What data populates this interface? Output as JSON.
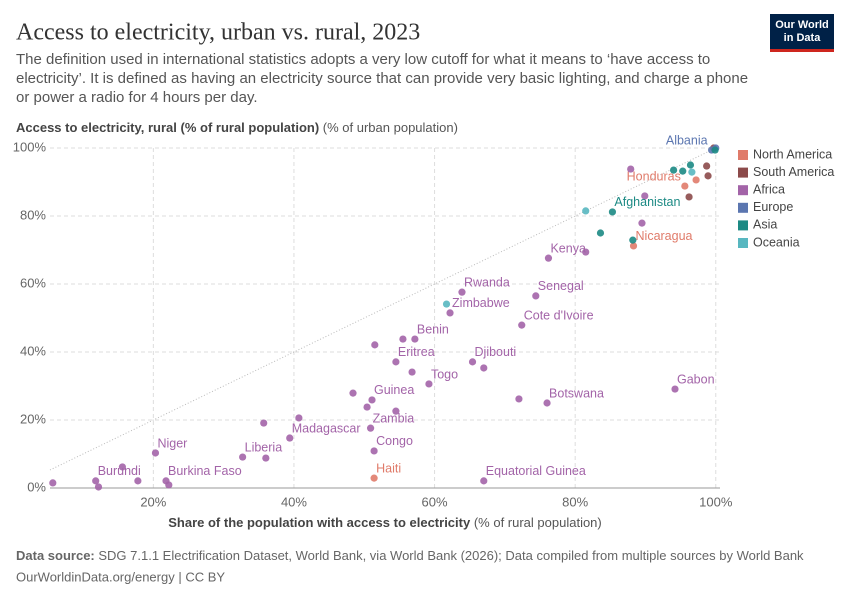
{
  "chart_data": {
    "type": "scatter",
    "title": "Access to electricity, urban vs. rural, 2023",
    "subtitle": "The definition used in international statistics adopts a very low cutoff for what it means to ‘have access to electricity’. It is defined as having an electricity source that can provide very basic lighting, and charge a phone or power a radio for 4 hours per day.",
    "y_label": "Access to electricity, rural (% of rural population)",
    "y_label_note": "(% of urban population)",
    "x_label": "Share of the population with access to electricity",
    "x_label_note": "(% of rural population)",
    "source_label": "Data source:",
    "source": "SDG 7.1.1 Electrification Dataset, World Bank, via World Bank (2026); Data compiled from multiple sources by World Bank",
    "footer_link": "OurWorldinData.org/energy | CC BY",
    "logo": [
      "Our World",
      "in Data"
    ],
    "xlim": [
      5.3,
      100.6
    ],
    "ylim": [
      0,
      100
    ],
    "xticks": [
      {
        "value": 20,
        "label": "20%"
      },
      {
        "value": 40,
        "label": "40%"
      },
      {
        "value": 60,
        "label": "60%"
      },
      {
        "value": 80,
        "label": "80%"
      },
      {
        "value": 100,
        "label": "100%"
      }
    ],
    "yticks": [
      {
        "value": 0,
        "label": "0%"
      },
      {
        "value": 20,
        "label": "20%"
      },
      {
        "value": 40,
        "label": "40%"
      },
      {
        "value": 60,
        "label": "60%"
      },
      {
        "value": 80,
        "label": "80%"
      },
      {
        "value": 100,
        "label": "100%"
      }
    ],
    "grid": true,
    "legend": "right",
    "series": [
      {
        "name": "North America",
        "color": "#e07b6a",
        "x": [
          51.4,
          95.6,
          88.3,
          97.2
        ],
        "values": [
          2.9,
          88.8,
          71.2,
          90.6
        ],
        "labels": [
          "Haiti",
          "Honduras",
          "Nicaragua",
          null
        ]
      },
      {
        "name": "South America",
        "color": "#8c4a4a",
        "x": [
          96.2,
          98.9,
          98.7,
          99.7
        ],
        "values": [
          85.6,
          91.8,
          94.7,
          100
        ],
        "labels": [
          null,
          null,
          null,
          null
        ]
      },
      {
        "name": "Africa",
        "color": "#a364a8",
        "x": [
          5.7,
          11.8,
          12.2,
          15.6,
          17.8,
          20.3,
          21.8,
          22.2,
          32.7,
          36.0,
          39.4,
          35.7,
          40.7,
          48.4,
          51.1,
          50.4,
          54.5,
          50.9,
          51.4,
          59.2,
          54.5,
          56.8,
          55.5,
          57.2,
          51.5,
          65.4,
          67.0,
          62.2,
          63.9,
          74.4,
          72.4,
          76.2,
          81.5,
          76.0,
          72.0,
          67.0,
          94.2,
          87.9,
          89.5,
          89.9
        ],
        "values": [
          1.5,
          2.1,
          0.3,
          6.2,
          2.1,
          10.3,
          2.1,
          0.9,
          9.1,
          8.8,
          14.7,
          19.1,
          20.6,
          27.9,
          25.9,
          23.8,
          22.6,
          17.6,
          10.9,
          30.6,
          37.1,
          34.1,
          43.8,
          43.8,
          42.1,
          37.1,
          35.3,
          51.5,
          57.6,
          56.5,
          47.9,
          67.6,
          69.4,
          25.0,
          26.2,
          2.1,
          29.1,
          93.8,
          77.9,
          85.9
        ],
        "labels": [
          null,
          "Burundi",
          null,
          null,
          null,
          "Niger",
          "Burkina Faso",
          null,
          "Liberia",
          null,
          "Madagascar",
          null,
          null,
          null,
          "Guinea",
          null,
          null,
          "Zambia",
          "Congo",
          "Togo",
          "Eritrea",
          null,
          null,
          "Benin",
          null,
          "Djibouti",
          null,
          "Zimbabwe",
          "Rwanda",
          "Senegal",
          "Cote d'Ivoire",
          "Kenya",
          null,
          "Botswana",
          null,
          "Equatorial Guinea",
          "Gabon",
          null,
          null,
          null
        ]
      },
      {
        "name": "Europe",
        "color": "#5b76b0",
        "x": [
          99.4,
          100
        ],
        "values": [
          99.4,
          100
        ],
        "labels": [
          "Albania",
          null
        ]
      },
      {
        "name": "Asia",
        "color": "#1c8a84",
        "x": [
          85.3,
          83.6,
          94.0,
          95.3,
          96.4,
          88.2,
          99.9
        ],
        "values": [
          81.2,
          75.0,
          93.5,
          93.2,
          95.0,
          72.9,
          99.4
        ],
        "labels": [
          "Afghanistan",
          null,
          null,
          null,
          null,
          null,
          null
        ]
      },
      {
        "name": "Oceania",
        "color": "#58b7c0",
        "x": [
          81.5,
          61.7,
          96.6
        ],
        "values": [
          81.5,
          54.1,
          92.9
        ],
        "labels": [
          null,
          null,
          null
        ]
      }
    ]
  }
}
